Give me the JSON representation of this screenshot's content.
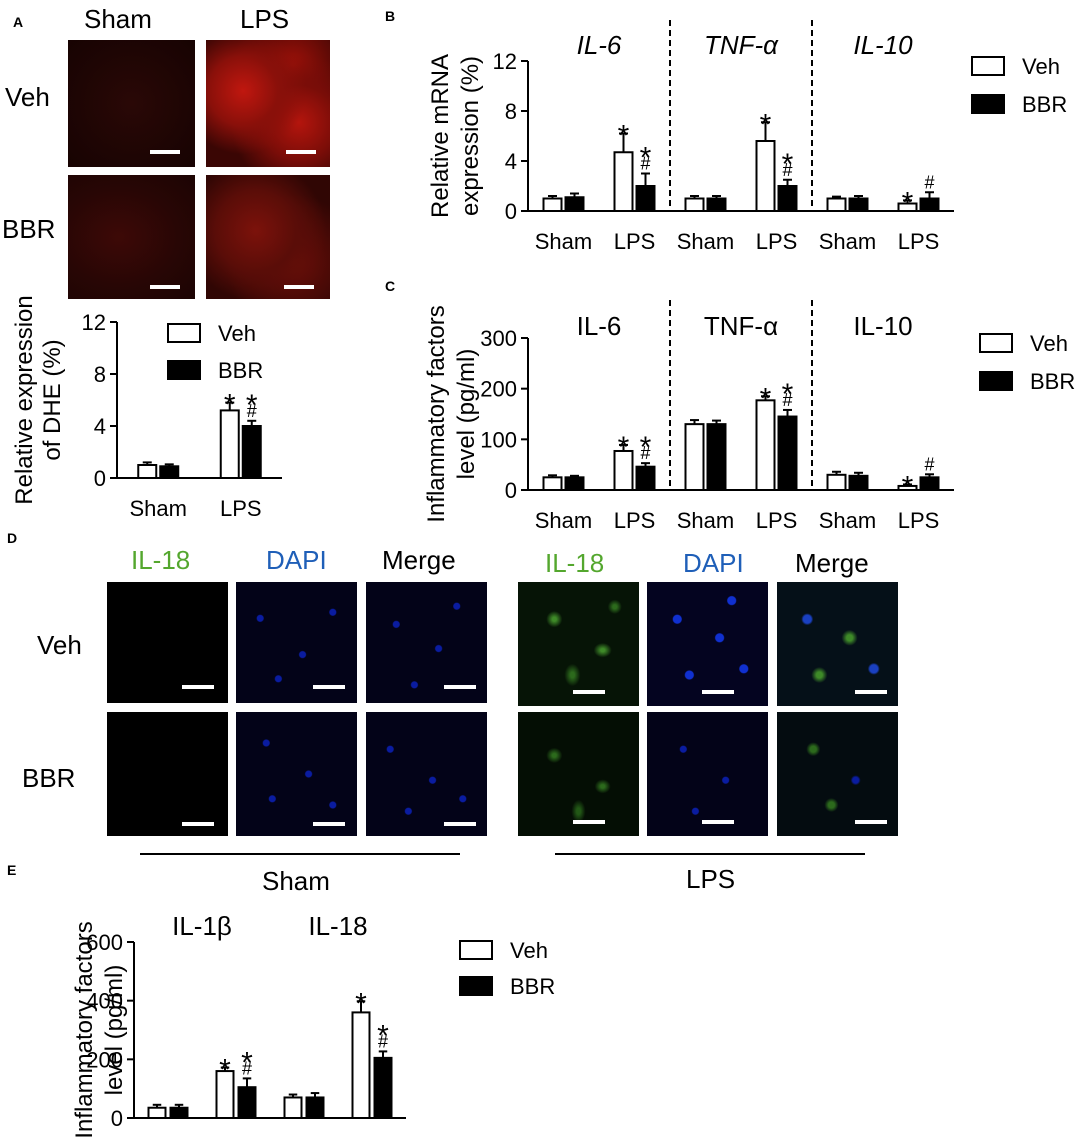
{
  "panels": {
    "A": {
      "letter": "A",
      "col_headers": [
        "Sham",
        "LPS"
      ],
      "row_headers": [
        "Veh",
        "BBR"
      ]
    },
    "B": {
      "letter": "B"
    },
    "C": {
      "letter": "C"
    },
    "D": {
      "letter": "D",
      "sham_headers": [
        "IL-18",
        "DAPI",
        "Merge"
      ],
      "lps_headers": [
        "IL-18",
        "DAPI",
        "Merge"
      ],
      "row_headers": [
        "Veh",
        "BBR"
      ],
      "group_sham": "Sham",
      "group_lps": "LPS"
    },
    "E": {
      "letter": "E"
    }
  },
  "colors": {
    "dhe_red": "#c41b12",
    "il18_green": "#54a72e",
    "dapi_blue": "#1f5fb8",
    "merge_black": "#000000",
    "bar_veh": "#ffffff",
    "bar_bbr": "#000000"
  },
  "chart_data": [
    {
      "id": "A-bar",
      "type": "bar",
      "ylabel": "Relative expression of DHE (%)",
      "ylim": [
        0,
        12
      ],
      "yticks": [
        0,
        4,
        8,
        12
      ],
      "categories": [
        "Sham",
        "LPS"
      ],
      "legend": [
        "Veh",
        "BBR"
      ],
      "series": [
        {
          "name": "Veh",
          "values": [
            1.0,
            5.2
          ],
          "errors": [
            0.2,
            0.6
          ]
        },
        {
          "name": "BBR",
          "values": [
            0.9,
            4.0
          ],
          "errors": [
            0.15,
            0.4
          ]
        }
      ],
      "annotations": [
        {
          "category": 1,
          "series": 0,
          "text": "*"
        },
        {
          "category": 1,
          "series": 1,
          "text": "*\n#"
        }
      ]
    },
    {
      "id": "B-bar",
      "type": "bar",
      "ylabel": "Relative mRNA expression (%)",
      "ylim": [
        0,
        12
      ],
      "yticks": [
        0,
        4,
        8,
        12
      ],
      "groups": [
        "IL-6",
        "TNF-α",
        "IL-10"
      ],
      "categories": [
        "Sham",
        "LPS",
        "Sham",
        "LPS",
        "Sham",
        "LPS"
      ],
      "legend": [
        "Veh",
        "BBR"
      ],
      "series": [
        {
          "name": "Veh",
          "values": [
            1.0,
            4.7,
            1.0,
            5.6,
            1.0,
            0.6
          ],
          "errors": [
            0.2,
            1.5,
            0.2,
            1.5,
            0.15,
            0.25
          ]
        },
        {
          "name": "BBR",
          "values": [
            1.1,
            2.0,
            1.0,
            2.0,
            1.0,
            1.0
          ],
          "errors": [
            0.3,
            1.0,
            0.2,
            0.5,
            0.2,
            0.5
          ]
        }
      ],
      "annotations": [
        {
          "category": 1,
          "series": 0,
          "text": "*"
        },
        {
          "category": 1,
          "series": 1,
          "text": "*\n#"
        },
        {
          "category": 3,
          "series": 0,
          "text": "*"
        },
        {
          "category": 3,
          "series": 1,
          "text": "*\n#"
        },
        {
          "category": 5,
          "series": 0,
          "text": "*"
        },
        {
          "category": 5,
          "series": 1,
          "text": "#"
        }
      ]
    },
    {
      "id": "C-bar",
      "type": "bar",
      "ylabel": "Inflammatory factors level (pg/ml)",
      "ylim": [
        0,
        300
      ],
      "yticks": [
        0,
        100,
        200,
        300
      ],
      "groups": [
        "IL-6",
        "TNF-α",
        "IL-10"
      ],
      "categories": [
        "Sham",
        "LPS",
        "Sham",
        "LPS",
        "Sham",
        "LPS"
      ],
      "legend": [
        "Veh",
        "BBR"
      ],
      "series": [
        {
          "name": "Veh",
          "values": [
            25,
            77,
            130,
            177,
            30,
            8
          ],
          "errors": [
            4,
            12,
            8,
            8,
            6,
            3
          ]
        },
        {
          "name": "BBR",
          "values": [
            25,
            46,
            130,
            145,
            28,
            25
          ],
          "errors": [
            3,
            7,
            7,
            13,
            6,
            6
          ]
        }
      ],
      "annotations": [
        {
          "category": 1,
          "series": 0,
          "text": "*"
        },
        {
          "category": 1,
          "series": 1,
          "text": "*\n#"
        },
        {
          "category": 3,
          "series": 0,
          "text": "*"
        },
        {
          "category": 3,
          "series": 1,
          "text": "*\n#"
        },
        {
          "category": 5,
          "series": 0,
          "text": "*"
        },
        {
          "category": 5,
          "series": 1,
          "text": "#"
        }
      ]
    },
    {
      "id": "E-bar",
      "type": "bar",
      "ylabel": "Inflammatory factors level (pg/ml)",
      "ylim": [
        0,
        600
      ],
      "yticks": [
        0,
        200,
        400,
        600
      ],
      "groups": [
        "IL-1β",
        "IL-18"
      ],
      "categories": [
        "Sham",
        "LPS",
        "Sham",
        "LPS"
      ],
      "legend": [
        "Veh",
        "BBR"
      ],
      "series": [
        {
          "name": "Veh",
          "values": [
            35,
            160,
            70,
            360
          ],
          "errors": [
            10,
            12,
            10,
            38
          ]
        },
        {
          "name": "BBR",
          "values": [
            35,
            105,
            70,
            205
          ],
          "errors": [
            10,
            30,
            15,
            22
          ]
        }
      ],
      "annotations": [
        {
          "category": 1,
          "series": 0,
          "text": "*"
        },
        {
          "category": 1,
          "series": 1,
          "text": "*\n#"
        },
        {
          "category": 3,
          "series": 0,
          "text": "*"
        },
        {
          "category": 3,
          "series": 1,
          "text": "*\n#"
        }
      ]
    }
  ]
}
